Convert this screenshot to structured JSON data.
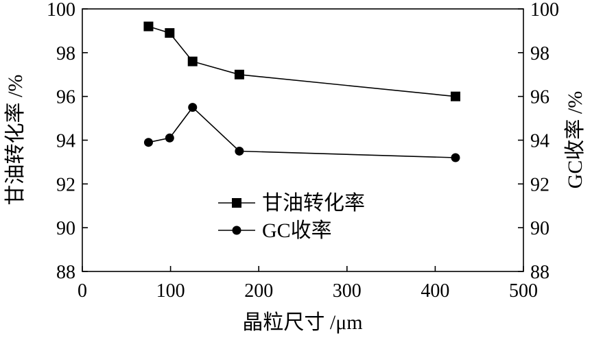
{
  "chart_data": {
    "type": "line",
    "xlabel": "晶粒尺寸 /μm",
    "ylabel_left": "甘油转化率 /%",
    "ylabel_right": "GC收率 /%",
    "xlim": [
      0,
      500
    ],
    "ylim": [
      88,
      100
    ],
    "y2lim": [
      88,
      100
    ],
    "x_ticks": [
      "0",
      "100",
      "200",
      "300",
      "400",
      "500"
    ],
    "y_ticks": [
      "88",
      "90",
      "92",
      "94",
      "96",
      "98",
      "100"
    ],
    "y2_ticks": [
      "88",
      "90",
      "92",
      "94",
      "96",
      "98",
      "100"
    ],
    "grid": false,
    "legend_position": "lower-center",
    "series": [
      {
        "name": "甘油转化率",
        "marker": "square",
        "axis": "left",
        "x": [
          75,
          99,
          125,
          178,
          423
        ],
        "y": [
          99.2,
          98.9,
          97.6,
          97.0,
          96.0
        ]
      },
      {
        "name": "GC收率",
        "marker": "circle",
        "axis": "right",
        "x": [
          75,
          99,
          125,
          178,
          423
        ],
        "y": [
          93.9,
          94.1,
          95.5,
          93.5,
          93.2
        ]
      }
    ]
  }
}
